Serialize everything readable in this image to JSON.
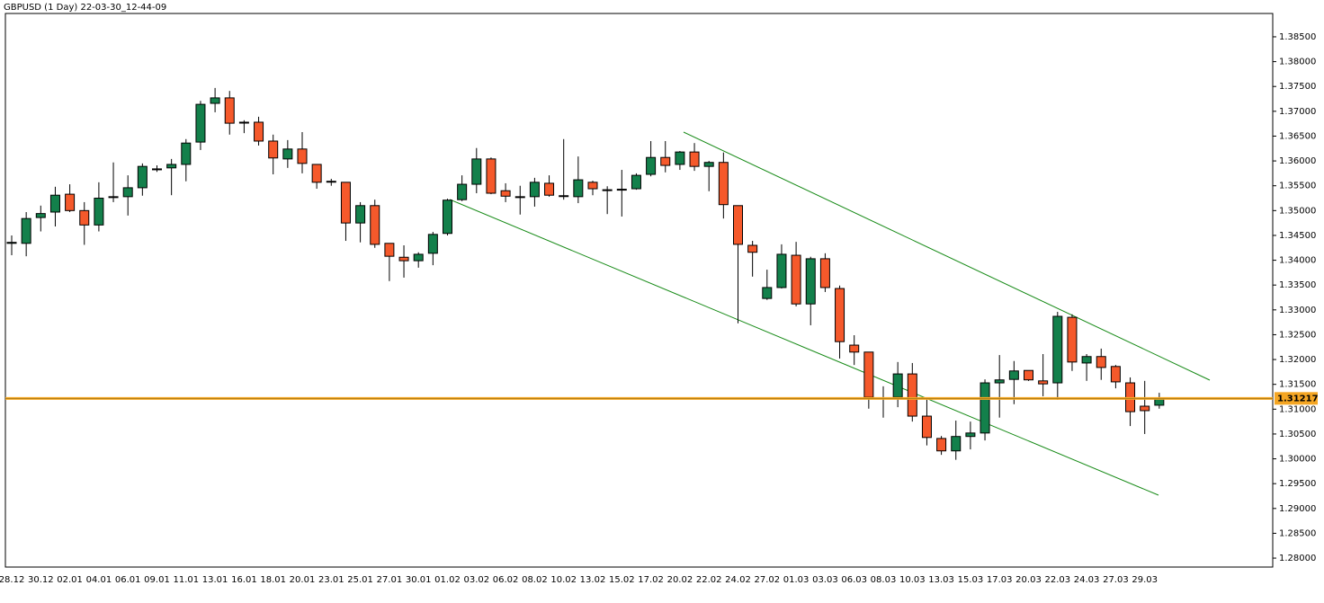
{
  "chart_data": {
    "type": "candlestick",
    "title": "GBPUSD (1 Day) 22-03-30_12-44-09",
    "categories": [
      "28.12",
      null,
      "30.12",
      null,
      "02.01",
      null,
      "04.01",
      null,
      "06.01",
      null,
      "09.01",
      null,
      "11.01",
      null,
      "13.01",
      null,
      "16.01",
      null,
      "18.01",
      null,
      "20.01",
      null,
      "23.01",
      null,
      "25.01",
      null,
      "27.01",
      null,
      "30.01",
      null,
      "01.02",
      null,
      "03.02",
      null,
      "06.02",
      null,
      "08.02",
      null,
      "10.02",
      null,
      "13.02",
      null,
      "15.02",
      null,
      "17.02",
      null,
      "20.02",
      null,
      "22.02",
      null,
      "24.02",
      null,
      "27.02",
      null,
      "01.03",
      null,
      "03.03",
      null,
      "06.03",
      null,
      "08.03",
      null,
      "10.03",
      null,
      "13.03",
      null,
      "15.03",
      null,
      "17.03",
      null,
      "20.03",
      null,
      "22.03",
      null,
      "24.03",
      null,
      "27.03",
      null,
      "29.03",
      null
    ],
    "open": [
      1.3434,
      1.3434,
      1.3486,
      1.3497,
      1.3533,
      1.35,
      1.3471,
      1.3527,
      1.3528,
      1.3546,
      1.3583,
      1.3586,
      1.3593,
      1.3638,
      1.3716,
      1.3727,
      1.3678,
      1.3678,
      1.364,
      1.3604,
      1.3624,
      1.3593,
      1.3559,
      1.3557,
      1.3475,
      1.351,
      1.3434,
      1.3406,
      1.3399,
      1.3414,
      1.3454,
      1.3522,
      1.3553,
      1.3604,
      1.354,
      1.3528,
      1.3528,
      1.3555,
      1.353,
      1.3528,
      1.3557,
      1.3542,
      1.3542,
      1.3544,
      1.3573,
      1.3607,
      1.3593,
      1.3618,
      1.3589,
      1.3597,
      1.351,
      1.343,
      1.3323,
      1.3345,
      1.341,
      1.3312,
      1.3403,
      1.3343,
      1.3229,
      1.3215,
      1.3123,
      1.3124,
      1.3171,
      1.3086,
      1.3041,
      1.3016,
      1.3045,
      1.3052,
      1.3153,
      1.316,
      1.3178,
      1.3157,
      1.3153,
      1.3285,
      1.3193,
      1.3206,
      1.3186,
      1.3153,
      1.3106,
      1.3108
    ],
    "high": [
      1.345,
      1.3497,
      1.351,
      1.3548,
      1.3553,
      1.3517,
      1.3557,
      1.3597,
      1.3571,
      1.3595,
      1.3591,
      1.3604,
      1.3644,
      1.3721,
      1.3747,
      1.3741,
      1.3682,
      1.3689,
      1.3653,
      1.3642,
      1.3658,
      1.3593,
      1.3564,
      1.3557,
      1.3517,
      1.3522,
      1.3434,
      1.343,
      1.3416,
      1.3457,
      1.3524,
      1.3571,
      1.3626,
      1.3607,
      1.3555,
      1.355,
      1.3566,
      1.3571,
      1.3644,
      1.3609,
      1.356,
      1.3549,
      1.3582,
      1.3575,
      1.364,
      1.364,
      1.362,
      1.3636,
      1.36,
      1.3617,
      1.351,
      1.3439,
      1.3381,
      1.3432,
      1.3437,
      1.3407,
      1.3414,
      1.3349,
      1.3249,
      1.3215,
      1.3146,
      1.3195,
      1.3193,
      1.3119,
      1.3046,
      1.3077,
      1.3075,
      1.316,
      1.3209,
      1.3197,
      1.3178,
      1.3211,
      1.3296,
      1.3291,
      1.3211,
      1.3222,
      1.3189,
      1.3164,
      1.3157,
      1.3133
    ],
    "low": [
      1.341,
      1.3408,
      1.3458,
      1.3468,
      1.3497,
      1.3431,
      1.3458,
      1.3517,
      1.349,
      1.353,
      1.3578,
      1.3531,
      1.3559,
      1.3622,
      1.3698,
      1.3653,
      1.3656,
      1.3631,
      1.3573,
      1.3586,
      1.3575,
      1.3544,
      1.355,
      1.3439,
      1.3436,
      1.3425,
      1.3358,
      1.3365,
      1.3385,
      1.339,
      1.345,
      1.3519,
      1.3535,
      1.3533,
      1.3517,
      1.3492,
      1.3508,
      1.3528,
      1.3522,
      1.3515,
      1.3531,
      1.3493,
      1.3488,
      1.3542,
      1.3569,
      1.3577,
      1.3582,
      1.358,
      1.3539,
      1.3484,
      1.3273,
      1.3367,
      1.332,
      1.3343,
      1.3307,
      1.3269,
      1.3336,
      1.3202,
      1.3189,
      1.3101,
      1.3083,
      1.3104,
      1.3075,
      1.3027,
      1.3008,
      1.2998,
      1.3019,
      1.3037,
      1.3083,
      1.311,
      1.3157,
      1.3126,
      1.3119,
      1.3177,
      1.3157,
      1.3159,
      1.3142,
      1.3066,
      1.305,
      1.3101
    ],
    "close": [
      1.3436,
      1.3484,
      1.3494,
      1.3531,
      1.35,
      1.3471,
      1.3525,
      1.3528,
      1.3546,
      1.3589,
      1.3584,
      1.3593,
      1.3636,
      1.3714,
      1.3727,
      1.3676,
      1.3678,
      1.364,
      1.3606,
      1.3624,
      1.3595,
      1.3557,
      1.3559,
      1.3475,
      1.351,
      1.3432,
      1.3408,
      1.3399,
      1.3412,
      1.3452,
      1.3521,
      1.3553,
      1.3604,
      1.3535,
      1.3529,
      1.3528,
      1.3557,
      1.3531,
      1.353,
      1.3562,
      1.3544,
      1.3542,
      1.3543,
      1.3571,
      1.3607,
      1.3591,
      1.3618,
      1.3589,
      1.3597,
      1.3512,
      1.3432,
      1.3416,
      1.3345,
      1.3412,
      1.3312,
      1.3403,
      1.3345,
      1.3236,
      1.3215,
      1.3124,
      1.3123,
      1.3171,
      1.3086,
      1.3043,
      1.3016,
      1.3045,
      1.3052,
      1.3153,
      1.3159,
      1.3177,
      1.3159,
      1.3151,
      1.3287,
      1.3195,
      1.3206,
      1.3184,
      1.3155,
      1.3095,
      1.3097,
      1.3122
    ],
    "up_color": "#13804b",
    "down_color": "#f5592b",
    "current_price": 1.31217,
    "current_price_color": "#f5a623",
    "ylim": [
      1.2782,
      1.3897
    ],
    "yticks": [
      {
        "value": 1.385,
        "label": "1.38500"
      },
      {
        "value": 1.38,
        "label": "1.38000"
      },
      {
        "value": 1.375,
        "label": "1.37500"
      },
      {
        "value": 1.37,
        "label": "1.37000"
      },
      {
        "value": 1.365,
        "label": "1.36500"
      },
      {
        "value": 1.36,
        "label": "1.36000"
      },
      {
        "value": 1.355,
        "label": "1.35500"
      },
      {
        "value": 1.35,
        "label": "1.35000"
      },
      {
        "value": 1.345,
        "label": "1.34500"
      },
      {
        "value": 1.34,
        "label": "1.34000"
      },
      {
        "value": 1.335,
        "label": "1.33500"
      },
      {
        "value": 1.33,
        "label": "1.33000"
      },
      {
        "value": 1.325,
        "label": "1.32500"
      },
      {
        "value": 1.32,
        "label": "1.32000"
      },
      {
        "value": 1.315,
        "label": "1.31500"
      },
      {
        "value": 1.31,
        "label": "1.31000"
      },
      {
        "value": 1.305,
        "label": "1.30500"
      },
      {
        "value": 1.3,
        "label": "1.30000"
      },
      {
        "value": 1.295,
        "label": "1.29500"
      },
      {
        "value": 1.29,
        "label": "1.29000"
      },
      {
        "value": 1.285,
        "label": "1.28500"
      },
      {
        "value": 1.28,
        "label": "1.28000"
      }
    ]
  }
}
